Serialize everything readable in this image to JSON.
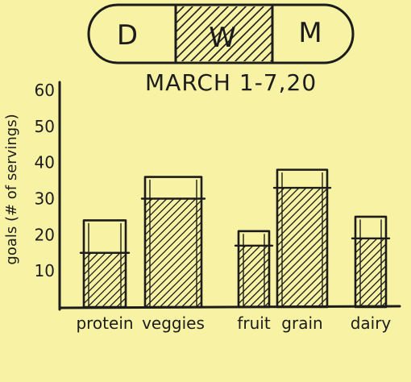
{
  "toggle": {
    "options": [
      {
        "key": "day",
        "label": "D"
      },
      {
        "key": "week",
        "label": "W"
      },
      {
        "key": "month",
        "label": "M"
      }
    ],
    "selected": "W"
  },
  "header": {
    "date_range": "MARCH 1-7,20"
  },
  "colors": {
    "paper": "#f7f2a4",
    "ink": "#1c1c1c"
  },
  "chart_data": {
    "type": "bar",
    "title": "",
    "ylabel": "goals (# of servings)",
    "xlabel": "",
    "ylim": [
      0,
      60
    ],
    "yticks": [
      "10",
      "20",
      "30",
      "40",
      "50",
      "60"
    ],
    "categories": [
      "protein",
      "veggies",
      "fruit",
      "grain",
      "dairy"
    ],
    "series": [
      {
        "name": "",
        "values": [
          15,
          30,
          17,
          33,
          19
        ]
      }
    ],
    "goals": [
      24,
      36,
      21,
      38,
      25
    ]
  }
}
